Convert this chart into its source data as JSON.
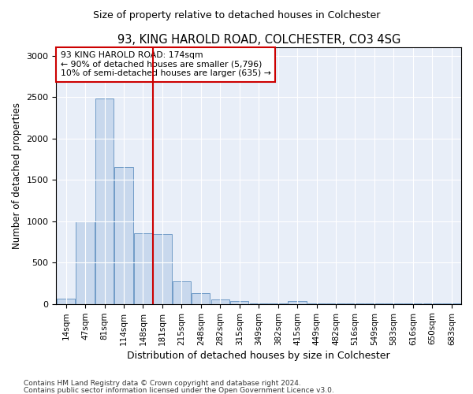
{
  "title": "93, KING HAROLD ROAD, COLCHESTER, CO3 4SG",
  "subtitle": "Size of property relative to detached houses in Colchester",
  "xlabel": "Distribution of detached houses by size in Colchester",
  "ylabel": "Number of detached properties",
  "bar_labels": [
    "14sqm",
    "47sqm",
    "81sqm",
    "114sqm",
    "148sqm",
    "181sqm",
    "215sqm",
    "248sqm",
    "282sqm",
    "315sqm",
    "349sqm",
    "382sqm",
    "415sqm",
    "449sqm",
    "482sqm",
    "516sqm",
    "549sqm",
    "583sqm",
    "616sqm",
    "650sqm",
    "683sqm"
  ],
  "bar_values": [
    60,
    1000,
    2480,
    1650,
    850,
    840,
    270,
    130,
    55,
    40,
    5,
    2,
    40,
    2,
    2,
    2,
    2,
    2,
    2,
    2,
    2
  ],
  "bar_color": "#c8d8ed",
  "bar_edge_color": "#6090c0",
  "vline_x_index": 5,
  "vline_color": "#cc0000",
  "annotation_line1": "93 KING HAROLD ROAD: 174sqm",
  "annotation_line2": "← 90% of detached houses are smaller (5,796)",
  "annotation_line3": "10% of semi-detached houses are larger (635) →",
  "annotation_box_color": "#cc0000",
  "ylim": [
    0,
    3100
  ],
  "yticks": [
    0,
    500,
    1000,
    1500,
    2000,
    2500,
    3000
  ],
  "background_color": "#ffffff",
  "plot_background_color": "#e8eef8",
  "grid_color": "#ffffff",
  "footer_line1": "Contains HM Land Registry data © Crown copyright and database right 2024.",
  "footer_line2": "Contains public sector information licensed under the Open Government Licence v3.0."
}
